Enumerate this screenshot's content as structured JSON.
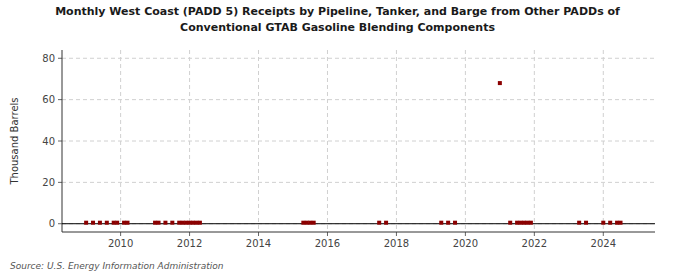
{
  "chart_data": {
    "type": "scatter",
    "title": "Monthly West Coast (PADD 5) Receipts by Pipeline, Tanker, and Barge from Other PADDs of",
    "subtitle": "Conventional GTAB Gasoline Blending Components",
    "ylabel": "Thousand Barrels",
    "source": "Source: U.S. Energy Information Administration",
    "color": "#8b0000",
    "marker": "square",
    "grid": true,
    "xlim": [
      2008.3,
      2025.5
    ],
    "ylim": [
      -4,
      84
    ],
    "xticks": [
      2010,
      2012,
      2014,
      2016,
      2018,
      2020,
      2022,
      2024
    ],
    "yticks": [
      0,
      20,
      40,
      60,
      80
    ],
    "x": [
      2009.0,
      2009.2,
      2009.4,
      2009.6,
      2009.8,
      2009.9,
      2010.1,
      2010.2,
      2011.0,
      2011.1,
      2011.3,
      2011.5,
      2011.7,
      2011.8,
      2011.9,
      2012.0,
      2012.1,
      2012.2,
      2012.3,
      2015.3,
      2015.4,
      2015.5,
      2015.6,
      2017.5,
      2017.7,
      2019.3,
      2019.5,
      2019.7,
      2021.0,
      2021.3,
      2021.5,
      2021.6,
      2021.7,
      2021.8,
      2021.9,
      2023.3,
      2023.5,
      2024.0,
      2024.2,
      2024.4,
      2024.5
    ],
    "values": [
      0.5,
      0.5,
      0.5,
      0.5,
      0.5,
      0.5,
      0.5,
      0.5,
      0.5,
      0.5,
      0.5,
      0.5,
      0.5,
      0.5,
      0.5,
      0.5,
      0.5,
      0.5,
      0.5,
      0.5,
      0.5,
      0.5,
      0.5,
      0.5,
      0.5,
      0.5,
      0.5,
      0.5,
      68.0,
      0.5,
      0.5,
      0.5,
      0.5,
      0.5,
      0.5,
      0.5,
      0.5,
      0.5,
      0.5,
      0.5,
      0.5
    ]
  }
}
